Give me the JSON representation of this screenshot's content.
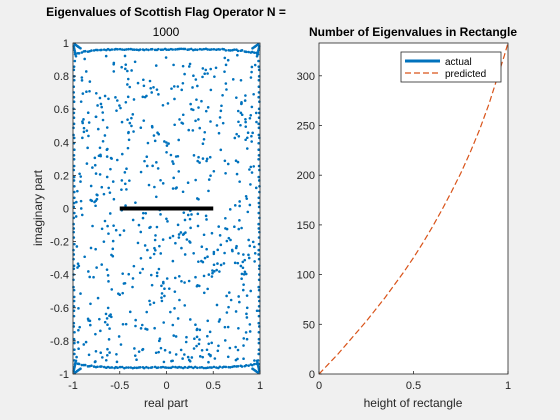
{
  "figure": {
    "background": "#f0f0f0",
    "axes_background": "#ffffff",
    "axis_color": "#262626"
  },
  "chart_data": [
    {
      "type": "scatter",
      "title": "Eigenvalues of Scottish Flag Operator N  =",
      "subtitle": "1000",
      "xlabel": "real part",
      "ylabel": "imaginary part",
      "xlim": [
        -1,
        1
      ],
      "ylim": [
        -1,
        1
      ],
      "xticks": [
        -1,
        -0.5,
        0,
        0.5,
        1
      ],
      "xtick_labels": [
        "-1",
        "-0.5",
        "0",
        "0.5",
        "1"
      ],
      "yticks": [
        -1,
        -0.8,
        -0.6,
        -0.4,
        -0.2,
        0,
        0.2,
        0.4,
        0.6,
        0.8,
        1
      ],
      "ytick_labels": [
        "-1",
        "-0.8",
        "-0.6",
        "-0.4",
        "-0.2",
        "0",
        "0.2",
        "0.4",
        "0.6",
        "0.8",
        "1"
      ],
      "grid": false,
      "point_color": "#0072bd",
      "point_count": 1000,
      "segment": {
        "x": [
          -0.5,
          0.5
        ],
        "y": [
          0,
          0
        ],
        "color": "#000000"
      }
    },
    {
      "type": "line",
      "title": "Number of Eigenvalues in Rectangle",
      "xlabel": "height of rectangle",
      "ylabel": "",
      "xlim": [
        0,
        1
      ],
      "ylim": [
        0,
        333
      ],
      "xticks": [
        0,
        0.5,
        1
      ],
      "xtick_labels": [
        "0",
        "0.5",
        "1"
      ],
      "yticks": [
        0,
        50,
        100,
        150,
        200,
        250,
        300
      ],
      "ytick_labels": [
        "0",
        "50",
        "100",
        "150",
        "200",
        "250",
        "300"
      ],
      "grid": false,
      "legend_position": "top-right",
      "series": [
        {
          "name": "actual",
          "color": "#0072bd",
          "style": "solid",
          "x": [],
          "y": []
        },
        {
          "name": "predicted",
          "color": "#d95319",
          "style": "dashed",
          "x": [
            0,
            0.05,
            0.1,
            0.15,
            0.2,
            0.25,
            0.3,
            0.35,
            0.4,
            0.45,
            0.5,
            0.55,
            0.6,
            0.65,
            0.7,
            0.75,
            0.8,
            0.85,
            0.9,
            0.95,
            0.98,
            1
          ],
          "y": [
            0,
            10,
            20,
            31,
            42,
            53,
            65,
            77,
            90,
            103,
            117,
            132,
            148,
            165,
            183,
            202,
            223,
            246,
            272,
            302,
            320,
            333
          ]
        }
      ]
    }
  ]
}
